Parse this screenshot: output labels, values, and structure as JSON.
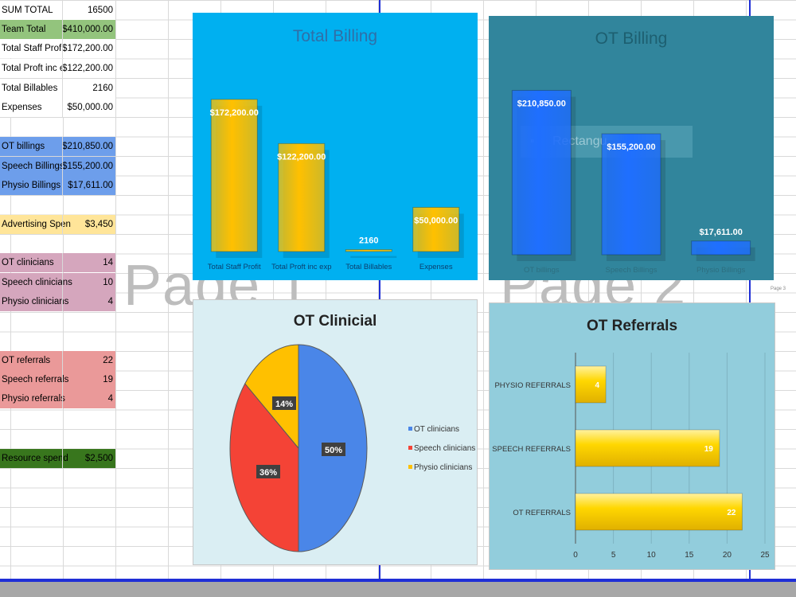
{
  "left_table": [
    {
      "label": "SUM TOTAL",
      "value": "16500",
      "bg": "#ffffff"
    },
    {
      "label": "Team Total",
      "value": "$410,000.00",
      "bg": "#93c47d"
    },
    {
      "label": "Total Staff Profit",
      "value": "$172,200.00",
      "bg": "#ffffff"
    },
    {
      "label": "Total Proft inc ex",
      "value": "$122,200.00",
      "bg": "#ffffff"
    },
    {
      "label": "Total Billables",
      "value": "2160",
      "bg": "#ffffff"
    },
    {
      "label": "Expenses",
      "value": "$50,000.00",
      "bg": "#ffffff"
    },
    {
      "label": "OT billings",
      "value": "$210,850.00",
      "bg": "#6d9eeb"
    },
    {
      "label": "Speech Billings",
      "value": "$155,200.00",
      "bg": "#6d9eeb"
    },
    {
      "label": "Physio Billings",
      "value": "$17,611.00",
      "bg": "#6d9eeb"
    },
    {
      "label": "Advertising Spen",
      "value": "$3,450",
      "bg": "#ffe599"
    },
    {
      "label": "OT clinicians",
      "value": "14",
      "bg": "#d5a6bd"
    },
    {
      "label": "Speech clinicians",
      "value": "10",
      "bg": "#d5a6bd"
    },
    {
      "label": "Physio clinicians",
      "value": "4",
      "bg": "#d5a6bd"
    },
    {
      "label": "OT referrals",
      "value": "22",
      "bg": "#ea9999"
    },
    {
      "label": "Speech referrals",
      "value": "19",
      "bg": "#ea9999"
    },
    {
      "label": "Physio referrals",
      "value": "4",
      "bg": "#ea9999"
    },
    {
      "label": "Resource spend",
      "value": "$2,500",
      "bg": "#38761d"
    }
  ],
  "watermarks": {
    "page1": "Page 1",
    "page2": "Page 2"
  },
  "page_tiny_label": "Page 3",
  "ghost_tooltip": "Rectangu",
  "chart_data": [
    {
      "type": "bar",
      "title": "Total Billing",
      "categories": [
        "Total Staff Profit",
        "Total Proft inc exp",
        "Total Billables",
        "Expenses"
      ],
      "values": [
        172200,
        122200,
        2160,
        50000
      ],
      "data_labels": [
        "$172,200.00",
        "$122,200.00",
        "2160",
        "$50,000.00"
      ],
      "ylim": [
        0,
        200000
      ],
      "colors": {
        "bg": "#00b0f0",
        "bar": "#ffc000",
        "title": "#2f6fa8"
      }
    },
    {
      "type": "bar",
      "title": "OT Billing",
      "categories": [
        "OT billings",
        "Speech Billings",
        "Physio Billings"
      ],
      "values": [
        210850,
        155200,
        17611
      ],
      "data_labels": [
        "$210,850.00",
        "$155,200.00",
        "$17,611.00"
      ],
      "ylim": [
        0,
        240000
      ],
      "colors": {
        "bg": "#31859c",
        "bar": "#1f6fff",
        "title": "#1d5f70"
      }
    },
    {
      "type": "pie",
      "title": "OT Clinicial",
      "categories": [
        "OT clinicians",
        "Speech clinicians",
        "Physio clinicians"
      ],
      "values": [
        14,
        10,
        4
      ],
      "data_labels": [
        "50%",
        "36%",
        "14%"
      ],
      "legend": "right",
      "colors": {
        "bg": "#daeef3",
        "slices": [
          "#4a86e8",
          "#f44336",
          "#ffc000"
        ],
        "title": "#222222"
      }
    },
    {
      "type": "bar",
      "orientation": "horizontal",
      "title": "OT Referrals",
      "categories": [
        "PHYSIO REFERRALS",
        "SPEECH REFERRALS",
        "OT REFERRALS"
      ],
      "values": [
        4,
        19,
        22
      ],
      "data_labels": [
        "4",
        "19",
        "22"
      ],
      "xlim": [
        0,
        25
      ],
      "xticks": [
        "0",
        "5",
        "10",
        "15",
        "20",
        "25"
      ],
      "colors": {
        "bg": "#92cddc",
        "bar": "#ffd700",
        "title": "#222222"
      }
    }
  ]
}
